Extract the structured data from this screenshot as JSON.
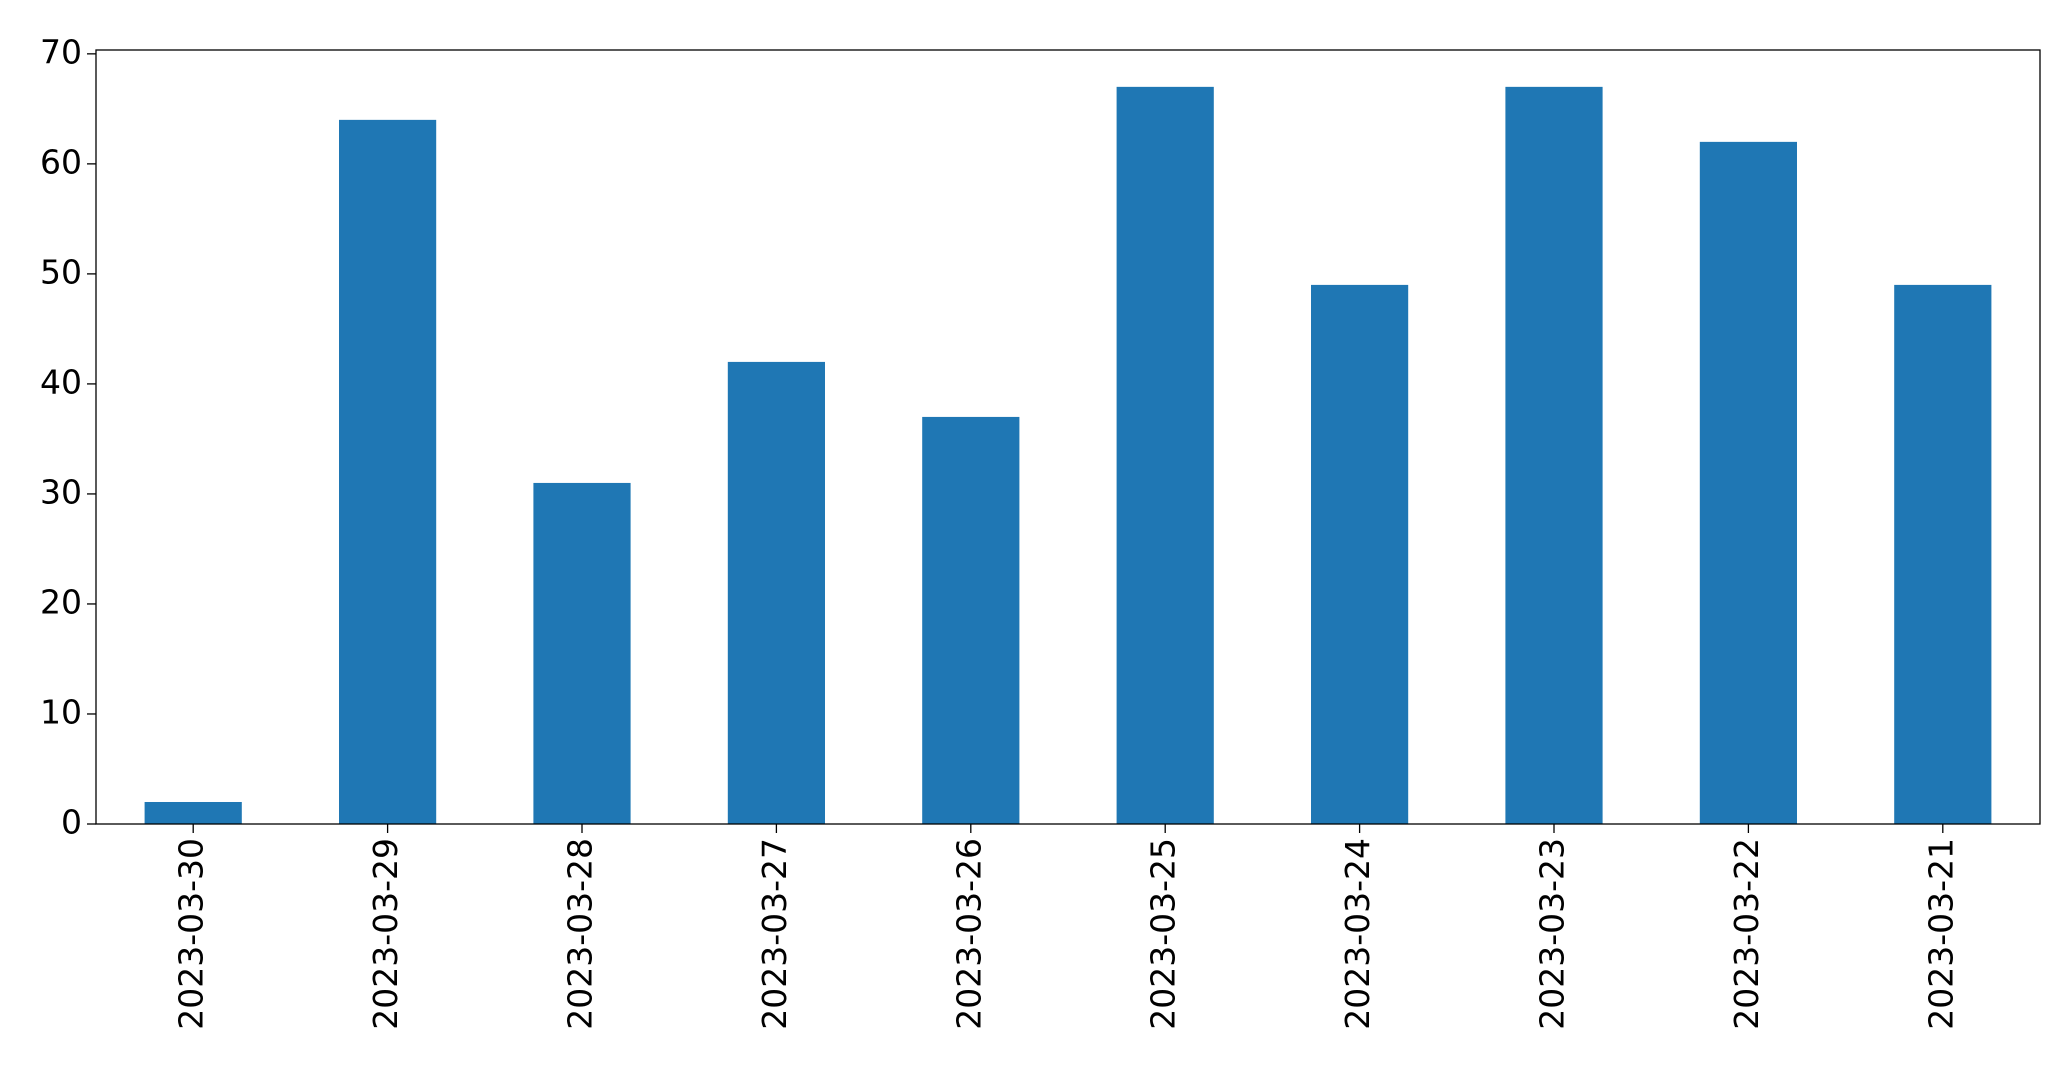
{
  "chart_data": {
    "type": "bar",
    "categories": [
      "2023-03-30",
      "2023-03-29",
      "2023-03-28",
      "2023-03-27",
      "2023-03-26",
      "2023-03-25",
      "2023-03-24",
      "2023-03-23",
      "2023-03-22",
      "2023-03-21"
    ],
    "values": [
      2,
      64,
      31,
      42,
      37,
      67,
      49,
      67,
      62,
      49
    ],
    "color": "#1f77b4",
    "ylim": [
      0,
      70.35
    ],
    "yticks": [
      0,
      10,
      20,
      30,
      40,
      50,
      60,
      70
    ],
    "grid": false
  }
}
